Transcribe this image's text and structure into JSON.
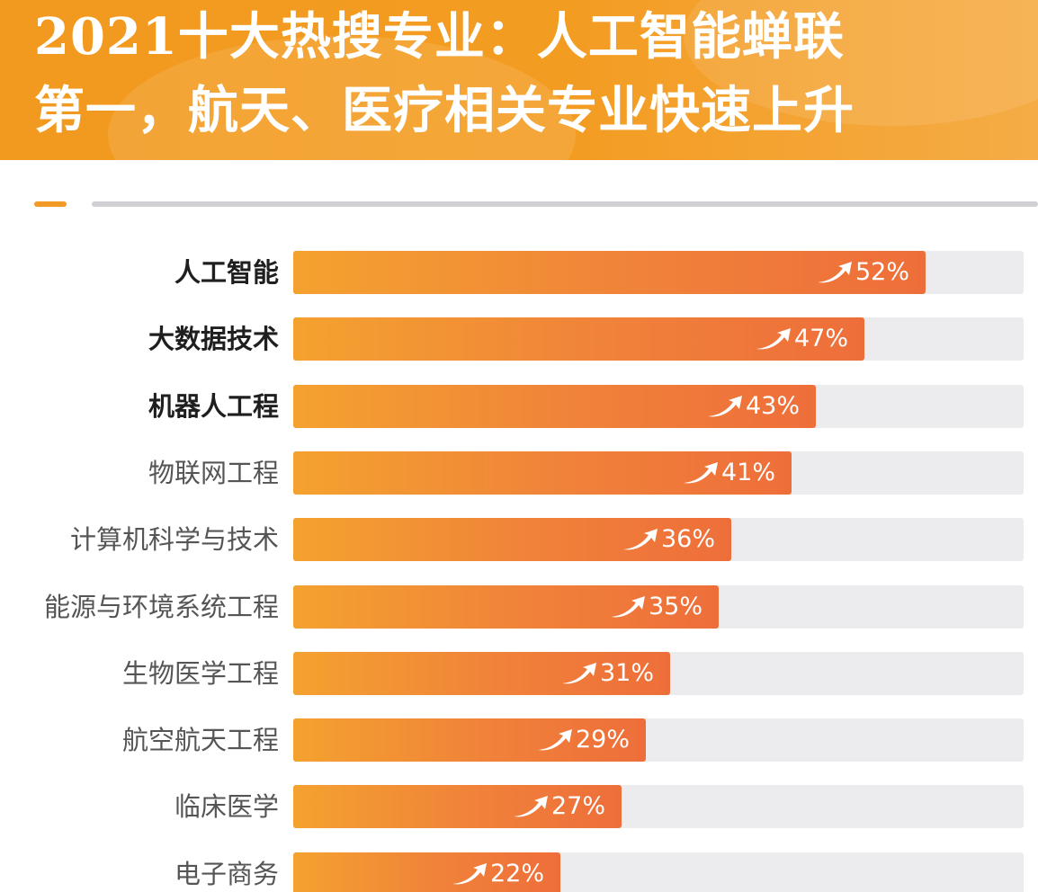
{
  "header": {
    "title_line1": "2021十大热搜专业：人工智能蝉联",
    "title_line2": "第一，航天、医疗相关专业快速上升"
  },
  "colors": {
    "header_bg": "#f39c22",
    "bar_start": "#f4a22f",
    "bar_end": "#ee6e3a",
    "track": "#ececee",
    "accent_rule": "#f39a25"
  },
  "icons": {
    "trend": "trend-up-arrow-icon"
  },
  "chart_data": {
    "type": "bar",
    "orientation": "horizontal",
    "title": "2021十大热搜专业：人工智能蝉联第一，航天、医疗相关专业快速上升",
    "categories": [
      "人工智能",
      "大数据技术",
      "机器人工程",
      "物联网工程",
      "计算机科学与技术",
      "能源与环境系统工程",
      "生物医学工程",
      "航空航天工程",
      "临床医学",
      "电子商务"
    ],
    "values": [
      52,
      47,
      43,
      41,
      36,
      35,
      31,
      29,
      27,
      22
    ],
    "value_labels": [
      "52%",
      "47%",
      "43%",
      "41%",
      "36%",
      "35%",
      "31%",
      "29%",
      "27%",
      "22%"
    ],
    "unit": "%",
    "xlim": [
      0,
      60
    ],
    "bold_top_n": 3,
    "grid": false,
    "legend": "none"
  }
}
